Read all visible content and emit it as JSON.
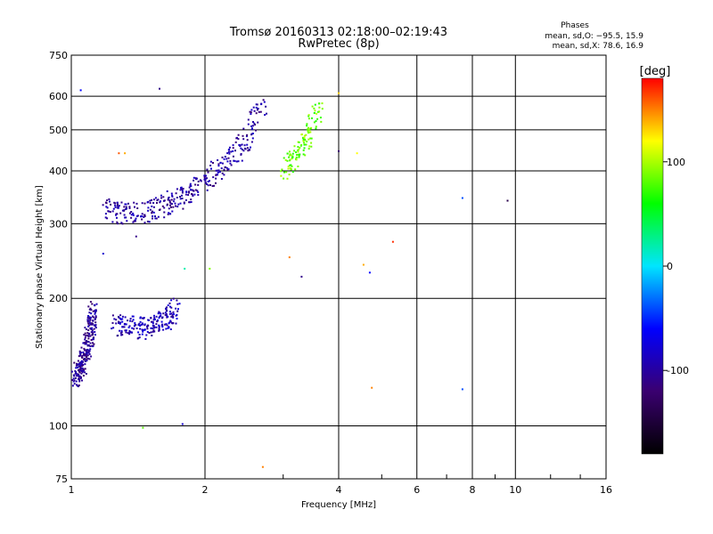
{
  "chart_data": {
    "type": "scatter",
    "title": "Tromsø 20160313 02:18:00–02:19:43",
    "subtitle": "RwPretec (8p)",
    "xlabel": "Frequency [MHz]",
    "ylabel": "Stationary phase Virtual Height [km]",
    "xscale": "log",
    "yscale": "log",
    "xlim": [
      1,
      16
    ],
    "ylim": [
      75,
      750
    ],
    "xticks": [
      1,
      2,
      4,
      6,
      8,
      10,
      16
    ],
    "yticks": [
      75,
      100,
      200,
      300,
      400,
      500,
      600,
      750
    ],
    "grid": true,
    "stats": {
      "heading": "Phases",
      "line_o": "mean, sd,O: −95.5, 15.9",
      "line_x": "mean, sd,X:  78.6, 16.9"
    },
    "colorbar": {
      "label": "[deg]",
      "ticks": [
        100,
        0,
        -100
      ],
      "range": [
        -180,
        180
      ],
      "colors": [
        "#000000",
        "#3a0070",
        "#0000ff",
        "#00e5ff",
        "#00ff00",
        "#ffff00",
        "#ff0000"
      ]
    },
    "series": [
      {
        "region": "lower-E-branch",
        "phase": -105,
        "x": [
          1.02,
          1.04,
          1.06,
          1.08,
          1.1,
          1.11,
          1.12
        ],
        "y": [
          128,
          135,
          142,
          150,
          162,
          175,
          190
        ]
      },
      {
        "region": "low-F-trace",
        "phase": -90,
        "x": [
          1.25,
          1.35,
          1.45,
          1.55,
          1.65,
          1.72
        ],
        "y": [
          175,
          172,
          170,
          173,
          180,
          190
        ]
      },
      {
        "region": "F1-trace-O",
        "phase": -100,
        "x": [
          1.2,
          1.3,
          1.45,
          1.6,
          1.75,
          1.9,
          2.1,
          2.3,
          2.5,
          2.7
        ],
        "y": [
          325,
          318,
          320,
          330,
          345,
          365,
          395,
          430,
          480,
          580
        ]
      },
      {
        "region": "F2-trace-X",
        "phase": 85,
        "x": [
          3.0,
          3.2,
          3.4,
          3.6
        ],
        "y": [
          400,
          430,
          480,
          560
        ]
      }
    ],
    "isolated_points": [
      {
        "x": 1.05,
        "y": 620,
        "phase": -60
      },
      {
        "x": 1.58,
        "y": 625,
        "phase": -110
      },
      {
        "x": 1.28,
        "y": 440,
        "phase": 160
      },
      {
        "x": 1.32,
        "y": 440,
        "phase": 140
      },
      {
        "x": 1.4,
        "y": 280,
        "phase": -110
      },
      {
        "x": 1.18,
        "y": 255,
        "phase": -80
      },
      {
        "x": 2.05,
        "y": 235,
        "phase": 90
      },
      {
        "x": 1.8,
        "y": 235,
        "phase": 20
      },
      {
        "x": 2.7,
        "y": 80,
        "phase": 150
      },
      {
        "x": 1.78,
        "y": 101,
        "phase": -80
      },
      {
        "x": 1.45,
        "y": 99,
        "phase": 80
      },
      {
        "x": 3.1,
        "y": 250,
        "phase": 150
      },
      {
        "x": 3.3,
        "y": 225,
        "phase": -110
      },
      {
        "x": 4.0,
        "y": 610,
        "phase": 130
      },
      {
        "x": 4.0,
        "y": 445,
        "phase": -120
      },
      {
        "x": 4.4,
        "y": 440,
        "phase": 120
      },
      {
        "x": 4.55,
        "y": 240,
        "phase": 140
      },
      {
        "x": 4.7,
        "y": 230,
        "phase": -60
      },
      {
        "x": 4.75,
        "y": 123,
        "phase": 150
      },
      {
        "x": 5.3,
        "y": 272,
        "phase": 170
      },
      {
        "x": 7.6,
        "y": 345,
        "phase": -40
      },
      {
        "x": 7.6,
        "y": 122,
        "phase": -40
      },
      {
        "x": 9.6,
        "y": 340,
        "phase": -140
      }
    ]
  }
}
